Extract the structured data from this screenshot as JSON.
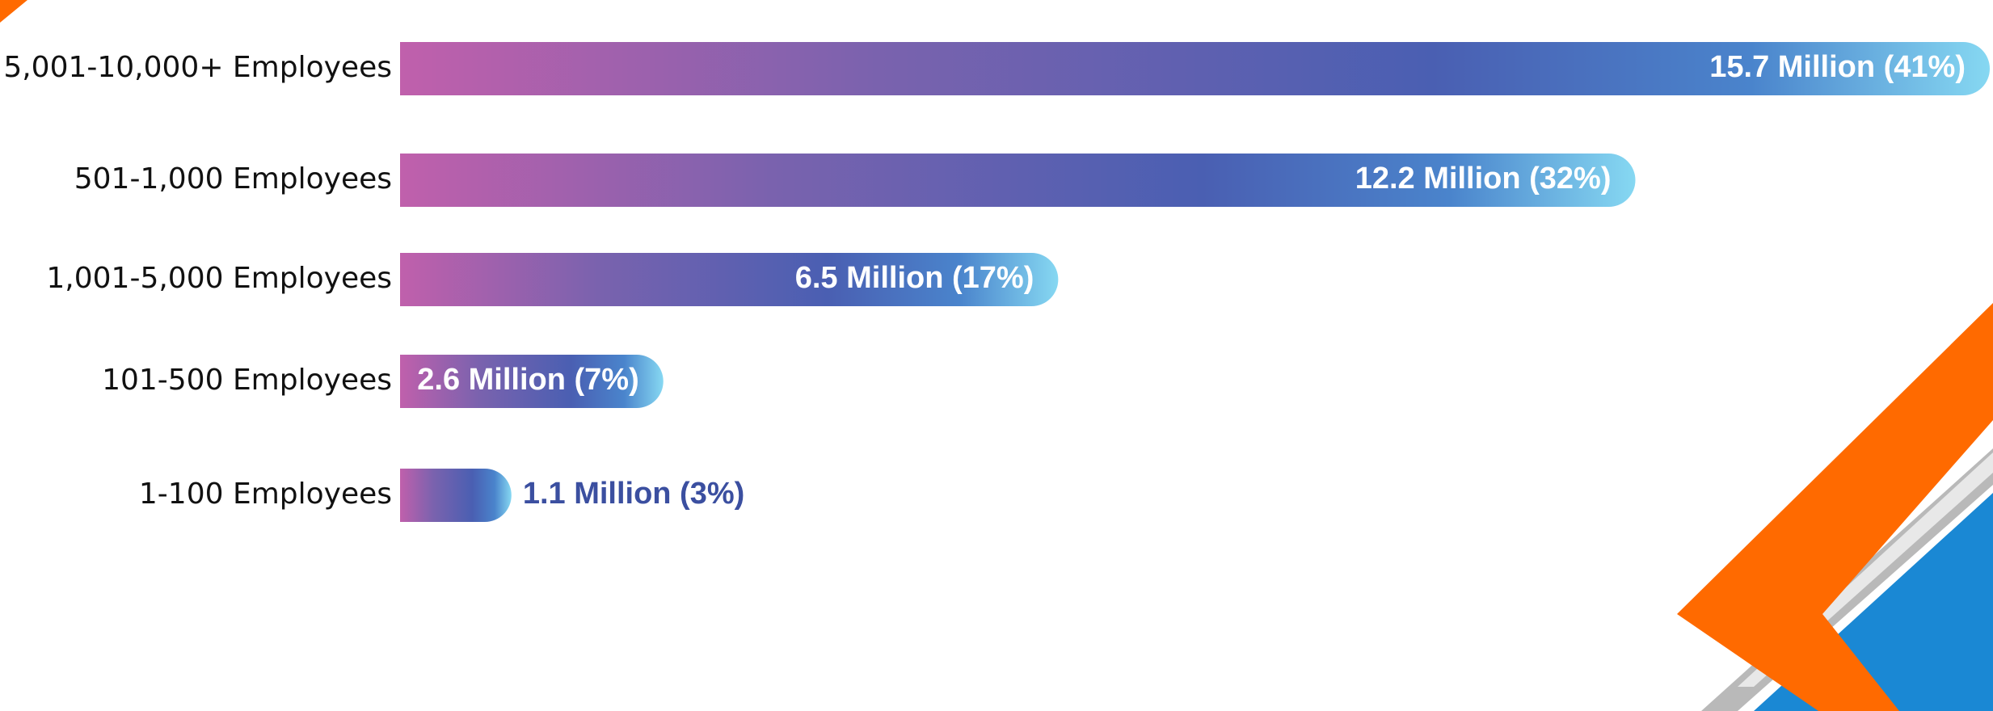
{
  "chart_data": {
    "type": "bar",
    "orientation": "horizontal",
    "categories": [
      "5,001-10,000+ Employees",
      "501-1,000 Employees",
      "1,001-5,000 Employees",
      "101-500 Employees",
      "1-100 Employees"
    ],
    "values": [
      15.7,
      12.2,
      6.5,
      2.6,
      1.1
    ],
    "value_labels": [
      "15.7 Million (41%)",
      "12.2 Million (32%)",
      "6.5 Million (17%)",
      "2.6 Million (7%)",
      "1.1 Million (3%)"
    ]
  }
}
